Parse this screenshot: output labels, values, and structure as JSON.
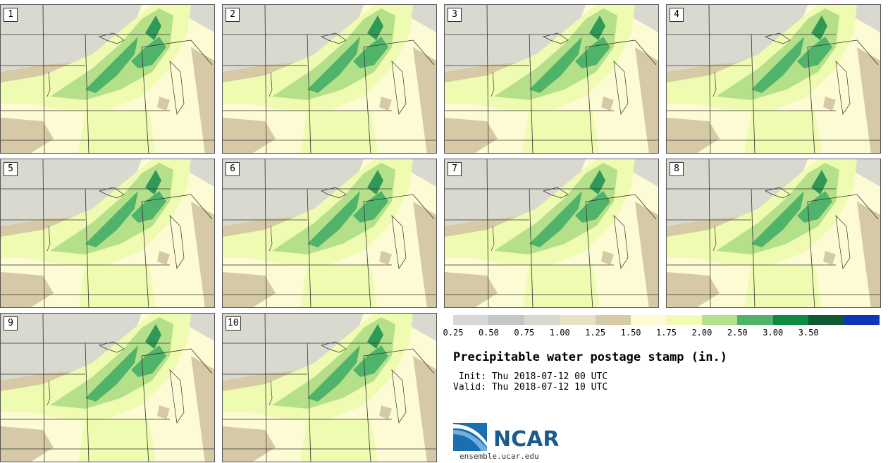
{
  "stamps": [
    {
      "label": "1"
    },
    {
      "label": "2"
    },
    {
      "label": "3"
    },
    {
      "label": "4"
    },
    {
      "label": "5"
    },
    {
      "label": "6"
    },
    {
      "label": "7"
    },
    {
      "label": "8"
    },
    {
      "label": "9"
    },
    {
      "label": "10"
    }
  ],
  "legend": {
    "colors": [
      "#d8d8d8",
      "#c6c6c6",
      "#d9d9cf",
      "#e6e0c4",
      "#d6c9a6",
      "#fdfbd3",
      "#eefbb0",
      "#b5e08a",
      "#4fb36a",
      "#0f8a43",
      "#0f5a30",
      "#1133b8"
    ],
    "ticks": [
      "0.25",
      "0.50",
      "0.75",
      "1.00",
      "1.25",
      "1.50",
      "1.75",
      "2.00",
      "2.50",
      "3.00",
      "3.50"
    ]
  },
  "title": "Precipitable water postage stamp (in.)",
  "init": " Init: Thu 2018-07-12 00 UTC",
  "valid": "Valid: Thu 2018-07-12 10 UTC",
  "logo": {
    "text": "NCAR",
    "site": "ensemble.ucar.edu"
  },
  "map_colors": {
    "bg": "#fdfbd3",
    "grey": "#d9d9cf",
    "tan": "#d6c9a6",
    "light": "#eefbb0",
    "mid": "#b5e08a",
    "dark": "#4fb36a",
    "darker": "#2f9955"
  }
}
